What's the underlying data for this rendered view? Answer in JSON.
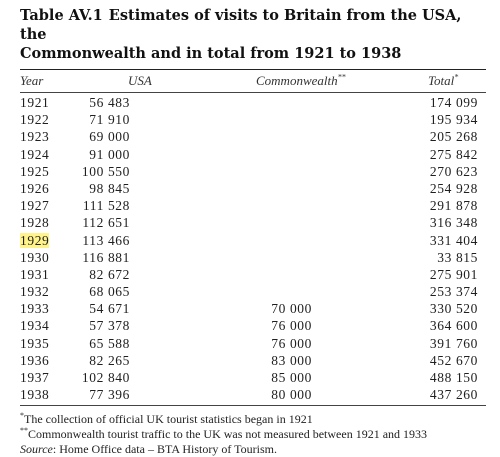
{
  "table": {
    "number": "Table AV.1",
    "title_line1": "Estimates of visits to Britain from the USA, the",
    "title_line2": "Commonwealth and in total from 1921 to 1938",
    "headers": {
      "year": "Year",
      "usa": "USA",
      "commonwealth": "Commonwealth",
      "commonwealth_mark": "**",
      "total": "Total",
      "total_mark": "*"
    },
    "highlight_year": "1929",
    "highlight_color": "#fff38a",
    "rows": [
      {
        "year": "1921",
        "usa": "56 483",
        "commonwealth": "",
        "total": "174 099"
      },
      {
        "year": "1922",
        "usa": "71 910",
        "commonwealth": "",
        "total": "195 934"
      },
      {
        "year": "1923",
        "usa": "69 000",
        "commonwealth": "",
        "total": "205 268"
      },
      {
        "year": "1924",
        "usa": "91 000",
        "commonwealth": "",
        "total": "275 842"
      },
      {
        "year": "1925",
        "usa": "100 550",
        "commonwealth": "",
        "total": "270 623"
      },
      {
        "year": "1926",
        "usa": "98 845",
        "commonwealth": "",
        "total": "254 928"
      },
      {
        "year": "1927",
        "usa": "111 528",
        "commonwealth": "",
        "total": "291 878"
      },
      {
        "year": "1928",
        "usa": "112 651",
        "commonwealth": "",
        "total": "316 348"
      },
      {
        "year": "1929",
        "usa": "113 466",
        "commonwealth": "",
        "total": "331 404"
      },
      {
        "year": "1930",
        "usa": "116 881",
        "commonwealth": "",
        "total": "33 815"
      },
      {
        "year": "1931",
        "usa": "82 672",
        "commonwealth": "",
        "total": "275 901"
      },
      {
        "year": "1932",
        "usa": "68 065",
        "commonwealth": "",
        "total": "253 374"
      },
      {
        "year": "1933",
        "usa": "54 671",
        "commonwealth": "70 000",
        "total": "330 520"
      },
      {
        "year": "1934",
        "usa": "57 378",
        "commonwealth": "76 000",
        "total": "364 600"
      },
      {
        "year": "1935",
        "usa": "65 588",
        "commonwealth": "76 000",
        "total": "391 760"
      },
      {
        "year": "1936",
        "usa": "82 265",
        "commonwealth": "83 000",
        "total": "452 670"
      },
      {
        "year": "1937",
        "usa": "102 840",
        "commonwealth": "85 000",
        "total": "488 150"
      },
      {
        "year": "1938",
        "usa": "77 396",
        "commonwealth": "80 000",
        "total": "437 260"
      }
    ],
    "notes": {
      "note1_mark": "*",
      "note1": "The collection of official UK tourist statistics began in 1921",
      "note2_mark": "**",
      "note2": "Commonwealth tourist traffic to the UK was not measured between 1921 and 1933",
      "source_label": "Source",
      "source_text": ": Home Office data – BTA History of Tourism."
    }
  }
}
